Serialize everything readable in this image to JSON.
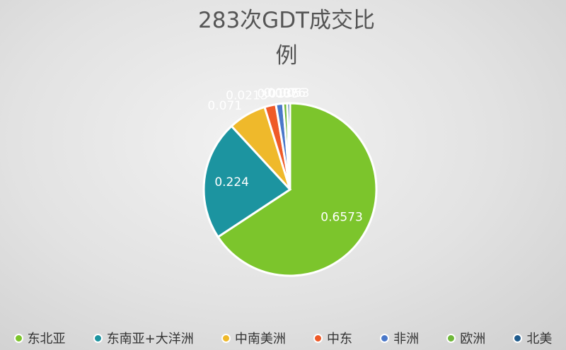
{
  "chart_data": {
    "type": "pie",
    "title": "283次GDT成交比例",
    "categories": [
      "东北亚",
      "东南亚+大洋洲",
      "中南美洲",
      "中东",
      "非洲",
      "欧洲",
      "北美"
    ],
    "values": [
      0.6573,
      0.224,
      0.071,
      0.0213,
      0.0135,
      0.0076,
      0.0053
    ],
    "colors": [
      "#7cc52c",
      "#1c94a0",
      "#efb92b",
      "#ef5a28",
      "#4a78c9",
      "#6fb83a",
      "#1f5b8c"
    ],
    "legend": "bottom"
  }
}
